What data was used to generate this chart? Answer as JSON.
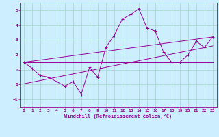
{
  "xlabel": "Windchill (Refroidissement éolien,°C)",
  "background_color": "#cceeff",
  "grid_color": "#aaddcc",
  "line_color": "#990099",
  "xlim": [
    -0.5,
    23.5
  ],
  "ylim": [
    -1.5,
    5.5
  ],
  "yticks": [
    -1,
    0,
    1,
    2,
    3,
    4,
    5
  ],
  "xticks": [
    0,
    1,
    2,
    3,
    4,
    5,
    6,
    7,
    8,
    9,
    10,
    11,
    12,
    13,
    14,
    15,
    16,
    17,
    18,
    19,
    20,
    21,
    22,
    23
  ],
  "main_x": [
    0,
    1,
    2,
    3,
    4,
    5,
    6,
    7,
    8,
    9,
    10,
    11,
    12,
    13,
    14,
    15,
    16,
    17,
    18,
    19,
    20,
    21,
    22,
    23
  ],
  "main_y": [
    1.5,
    1.1,
    0.6,
    0.5,
    0.2,
    -0.1,
    0.2,
    -0.65,
    1.15,
    0.5,
    2.5,
    3.3,
    4.4,
    4.7,
    5.1,
    3.8,
    3.6,
    2.2,
    1.5,
    1.5,
    2.0,
    2.9,
    2.5,
    3.2
  ],
  "line1_x": [
    0,
    23
  ],
  "line1_y": [
    1.5,
    1.5
  ],
  "line2_x": [
    0,
    23
  ],
  "line2_y": [
    1.5,
    3.2
  ],
  "line3_x": [
    0,
    23
  ],
  "line3_y": [
    0.05,
    2.6
  ]
}
